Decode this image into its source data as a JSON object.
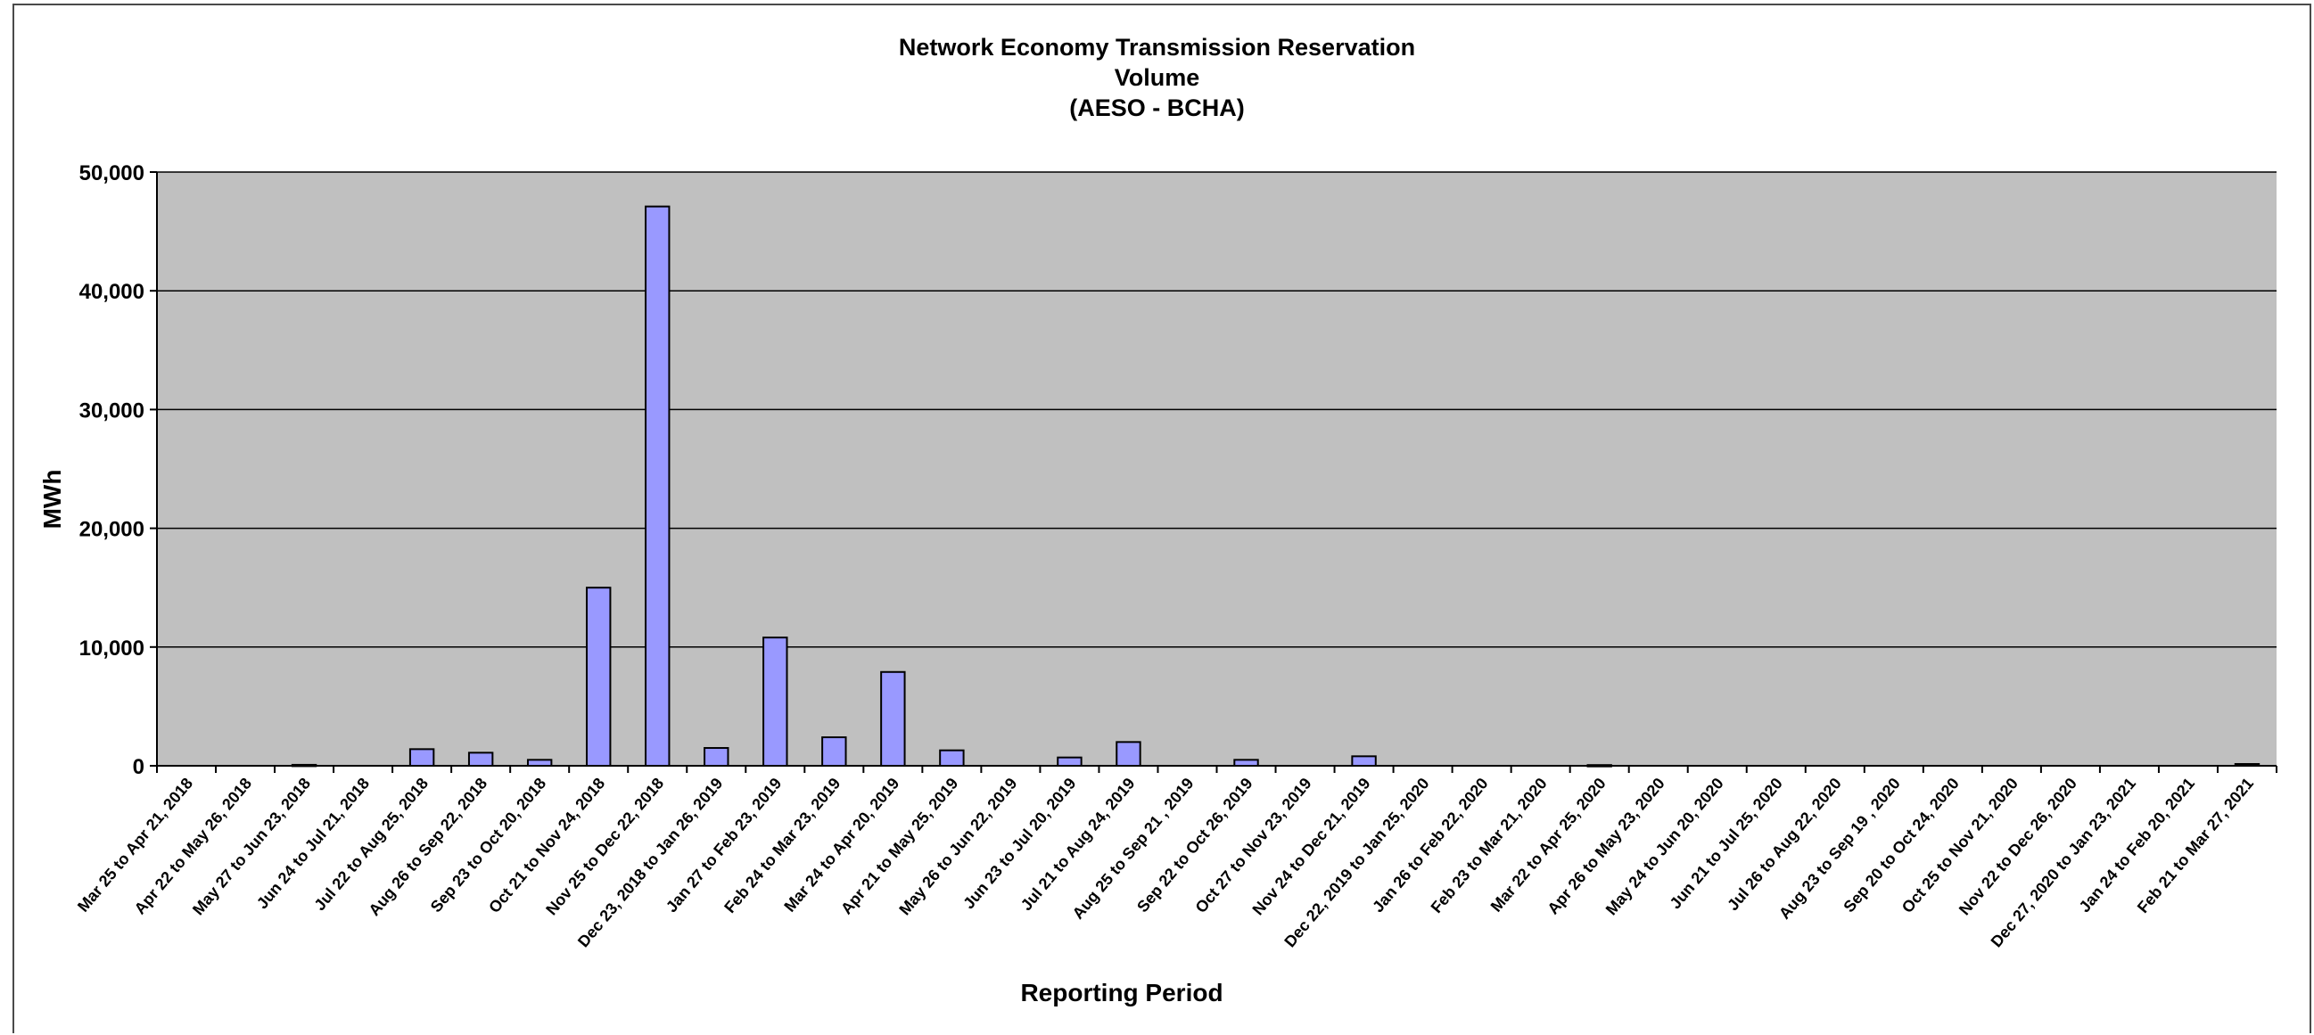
{
  "chart_data": {
    "type": "bar",
    "title_lines": [
      "Network Economy Transmission Reservation",
      "Volume",
      "(AESO - BCHA)"
    ],
    "xlabel": "Reporting Period",
    "ylabel": "MWh",
    "ylim": [
      0,
      50000
    ],
    "yticks": [
      0,
      10000,
      20000,
      30000,
      40000,
      50000
    ],
    "ytick_labels": [
      "0",
      "10,000",
      "20,000",
      "30,000",
      "40,000",
      "50,000"
    ],
    "grid": true,
    "categories": [
      "Mar 25 to Apr 21, 2018",
      "Apr 22 to May 26, 2018",
      "May 27 to Jun 23, 2018",
      "Jun 24 to Jul 21, 2018",
      "Jul 22 to Aug 25, 2018",
      "Aug 26 to Sep 22, 2018",
      "Sep 23 to Oct 20, 2018",
      "Oct 21 to Nov 24, 2018",
      "Nov 25 to Dec 22, 2018",
      "Dec 23, 2018 to Jan 26, 2019",
      "Jan 27 to Feb 23, 2019",
      "Feb 24 to Mar 23, 2019",
      "Mar 24 to Apr 20, 2019",
      "Apr 21 to May 25, 2019",
      "May 26 to Jun 22, 2019",
      "Jun 23 to Jul 20, 2019",
      "Jul 21 to Aug 24, 2019",
      "Aug 25 to Sep 21 , 2019",
      "Sep 22 to Oct 26, 2019",
      "Oct 27 to Nov 23, 2019",
      "Nov 24 to Dec 21, 2019",
      "Dec 22, 2019 to Jan 25, 2020",
      "Jan 26 to Feb 22, 2020",
      "Feb 23 to Mar 21, 2020",
      "Mar 22 to Apr 25, 2020",
      "Apr 26 to May 23, 2020",
      "May 24 to Jun 20, 2020",
      "Jun 21 to Jul 25, 2020",
      "Jul 26 to Aug 22, 2020",
      "Aug 23 to Sep 19 , 2020",
      "Sep 20 to Oct 24, 2020",
      "Oct 25 to Nov 21, 2020",
      "Nov 22 to Dec 26, 2020",
      "Dec 27, 2020 to Jan 23, 2021",
      "Jan 24 to Feb 20, 2021",
      "Feb 21 to Mar 27, 2021"
    ],
    "values": [
      0,
      0,
      80,
      0,
      1400,
      1100,
      500,
      15000,
      47100,
      1500,
      10800,
      2400,
      7900,
      1300,
      0,
      700,
      2000,
      0,
      500,
      0,
      800,
      0,
      0,
      0,
      60,
      0,
      0,
      0,
      0,
      0,
      0,
      0,
      0,
      0,
      0,
      150
    ],
    "colors": {
      "bar_fill": "#9999ff",
      "bar_stroke": "#000000",
      "plot_bg": "#c0c0c0",
      "gridline": "#000000"
    }
  }
}
